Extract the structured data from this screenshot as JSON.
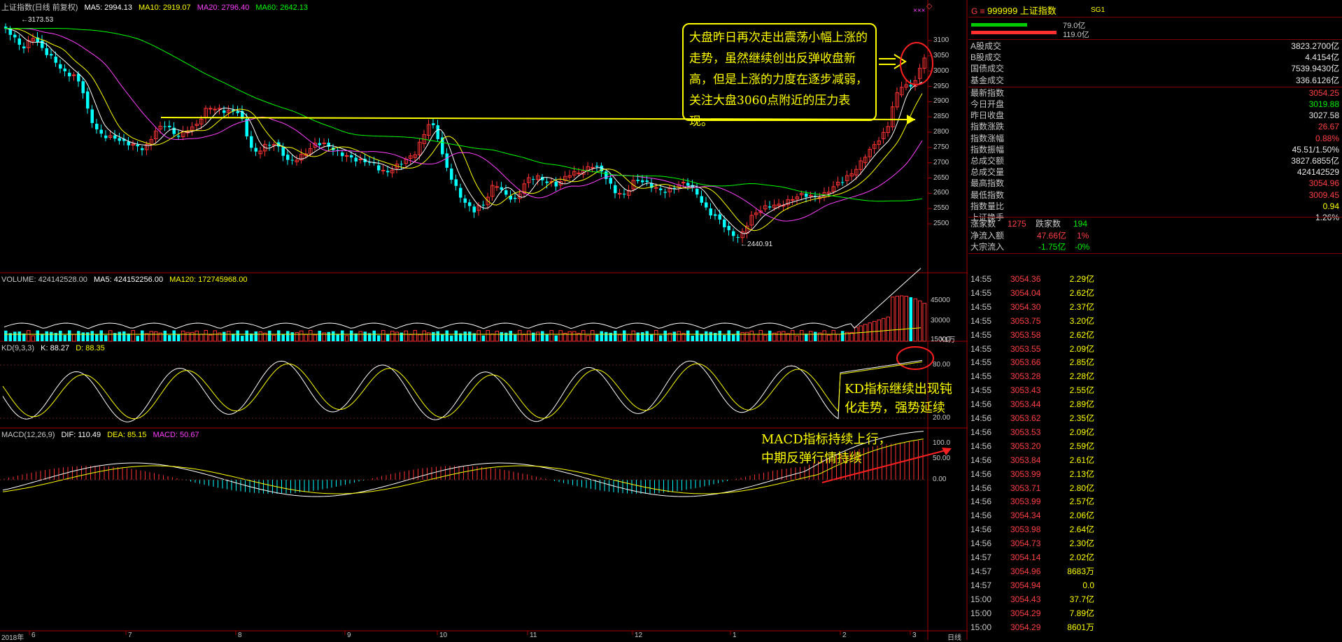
{
  "header": {
    "title": "上证指数(日线 前复权)",
    "ma5": "MA5: 2994.13",
    "ma10": "MA10: 2919.07",
    "ma20": "MA20: 2796.40",
    "ma60": "MA60: 2642.13",
    "volume": "VOLUME: 424142528.00",
    "vol_ma5": "MA5: 424152256.00",
    "vol_ma120": "MA120: 172745968.00",
    "kd_name": "KD(9,3,3)",
    "kd_k": "K: 88.27",
    "kd_d": "D: 88.35",
    "macd_name": "MACD(12,26,9)",
    "macd_dif": "DIF: 110.49",
    "macd_dea": "DEA: 85.15",
    "macd_val": "MACD: 50.67",
    "top_mark": "×××"
  },
  "chart_data": {
    "type": "candlestick",
    "high_label": "3173.53",
    "low_label": "2440.91",
    "price_ticks": [
      "3100",
      "3050",
      "3000",
      "2950",
      "2900",
      "2850",
      "2800",
      "2750",
      "2700",
      "2650",
      "2600",
      "2550",
      "2500"
    ],
    "volume_ticks": [
      "45000",
      "30000",
      "15000"
    ],
    "volume_unit": "X1万",
    "kd_ticks": [
      "80.00",
      "20.00"
    ],
    "macd_ticks": [
      "100.0",
      "50.00",
      "0.00"
    ],
    "x_labels": [
      "2018年",
      "6",
      "7",
      "8",
      "9",
      "10",
      "11",
      "12",
      "1",
      "2",
      "3"
    ],
    "period_label": "日线",
    "resistance_level": 2900
  },
  "annotations": {
    "main": "大盘昨日再次走出震荡小幅上涨的走势，虽然继续创出反弹收盘新高，但是上涨的力度在逐步减弱，关注大盘3060点附近的压力表现。",
    "kd_line1": "KD指标继续出现钝",
    "kd_line2": "化走势，强势延续",
    "macd_line1": "MACD指标持续上行，",
    "macd_line2": "中期反弹行情持续"
  },
  "sidebar": {
    "code_prefix": "G ≡",
    "code": "999999",
    "name": "上证指数",
    "tag": "SG1",
    "bar_top": "79.0亿",
    "bar_bottom": "119.0亿",
    "stats": [
      {
        "label": "A股成交",
        "value": "3823.2700亿",
        "color": "white"
      },
      {
        "label": "B股成交",
        "value": "4.4154亿",
        "color": "white"
      },
      {
        "label": "国债成交",
        "value": "7539.9430亿",
        "color": "white"
      },
      {
        "label": "基金成交",
        "value": "336.6126亿",
        "color": "white"
      },
      {
        "label": "最新指数",
        "value": "3054.25",
        "color": "red"
      },
      {
        "label": "今日开盘",
        "value": "3019.88",
        "color": "green"
      },
      {
        "label": "昨日收盘",
        "value": "3027.58",
        "color": "white"
      },
      {
        "label": "指数涨跌",
        "value": "26.67",
        "color": "red"
      },
      {
        "label": "指数涨幅",
        "value": "0.88%",
        "color": "red"
      },
      {
        "label": "指数振幅",
        "value": "45.51/1.50%",
        "color": "white"
      },
      {
        "label": "总成交额",
        "value": "3827.6855亿",
        "color": "white"
      },
      {
        "label": "总成交量",
        "value": "424142529",
        "color": "white"
      },
      {
        "label": "最高指数",
        "value": "3054.96",
        "color": "red"
      },
      {
        "label": "最低指数",
        "value": "3009.45",
        "color": "red"
      },
      {
        "label": "指数量比",
        "value": "0.94",
        "color": "yellow"
      },
      {
        "label": "上证换手",
        "value": "1.26%",
        "color": "white"
      }
    ],
    "up_label": "涨家数",
    "up_value": "1275",
    "down_label": "跌家数",
    "down_value": "194",
    "flow_label": "净流入额",
    "flow_value": "47.66亿",
    "flow_pct": "1%",
    "block_label": "大宗流入",
    "block_value": "-1.75亿",
    "block_pct": "-0%",
    "trades": [
      {
        "t": "14:55",
        "p": "3054.36",
        "v": "2.29亿"
      },
      {
        "t": "14:55",
        "p": "3054.04",
        "v": "2.62亿"
      },
      {
        "t": "14:55",
        "p": "3054.30",
        "v": "2.37亿"
      },
      {
        "t": "14:55",
        "p": "3053.75",
        "v": "3.20亿"
      },
      {
        "t": "14:55",
        "p": "3053.58",
        "v": "2.62亿"
      },
      {
        "t": "14:55",
        "p": "3053.55",
        "v": "2.09亿"
      },
      {
        "t": "14:55",
        "p": "3053.66",
        "v": "2.85亿"
      },
      {
        "t": "14:55",
        "p": "3053.28",
        "v": "2.28亿"
      },
      {
        "t": "14:55",
        "p": "3053.43",
        "v": "2.55亿"
      },
      {
        "t": "14:56",
        "p": "3053.44",
        "v": "2.89亿"
      },
      {
        "t": "14:56",
        "p": "3053.62",
        "v": "2.35亿"
      },
      {
        "t": "14:56",
        "p": "3053.53",
        "v": "2.09亿"
      },
      {
        "t": "14:56",
        "p": "3053.20",
        "v": "2.59亿"
      },
      {
        "t": "14:56",
        "p": "3053.84",
        "v": "2.61亿"
      },
      {
        "t": "14:56",
        "p": "3053.99",
        "v": "2.13亿"
      },
      {
        "t": "14:56",
        "p": "3053.71",
        "v": "2.80亿"
      },
      {
        "t": "14:56",
        "p": "3053.99",
        "v": "2.57亿"
      },
      {
        "t": "14:56",
        "p": "3054.34",
        "v": "2.06亿"
      },
      {
        "t": "14:56",
        "p": "3053.98",
        "v": "2.64亿"
      },
      {
        "t": "14:56",
        "p": "3054.73",
        "v": "2.30亿"
      },
      {
        "t": "14:57",
        "p": "3054.14",
        "v": "2.02亿"
      },
      {
        "t": "14:57",
        "p": "3054.96",
        "v": "8683万"
      },
      {
        "t": "14:57",
        "p": "3054.94",
        "v": "0.0"
      },
      {
        "t": "15:00",
        "p": "3054.43",
        "v": "37.7亿"
      },
      {
        "t": "15:00",
        "p": "3054.29",
        "v": "7.89亿"
      },
      {
        "t": "15:00",
        "p": "3054.29",
        "v": "8601万"
      }
    ]
  }
}
